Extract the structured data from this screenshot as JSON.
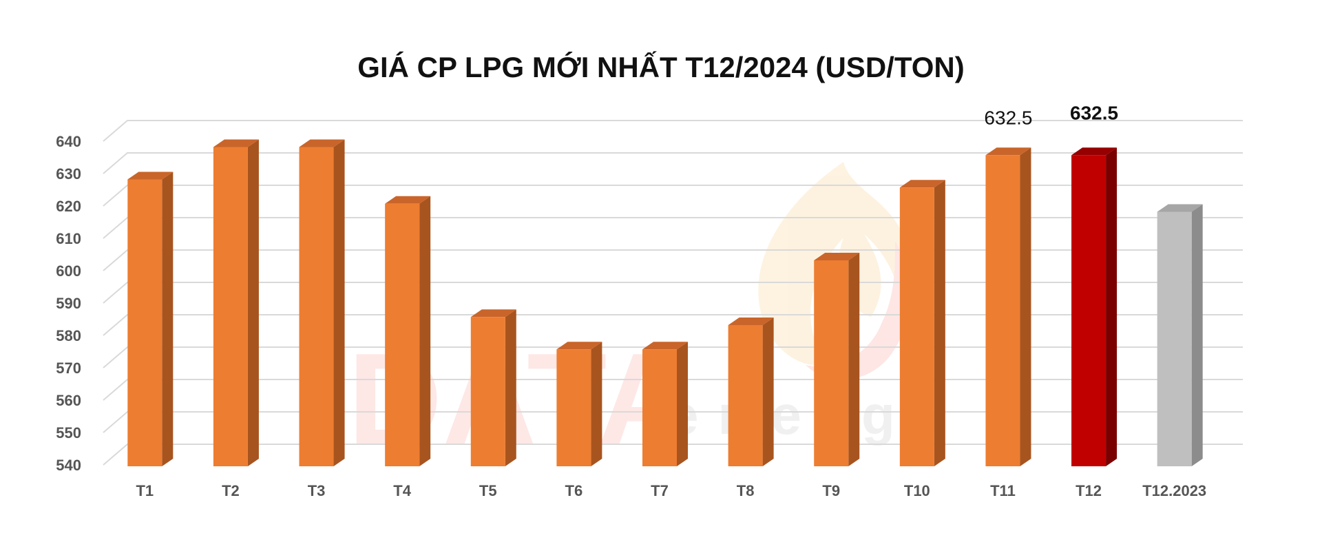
{
  "watermark": {
    "brand_main": "DATA",
    "brand_sub": "energy",
    "flame_icon": "flame-logo-icon"
  },
  "colors": {
    "bar": "#ED7D31",
    "bar_side": "#A8541F",
    "bar_top": "#C9652A",
    "highlight": "#C00000",
    "highlight_side": "#7A0000",
    "highlight_top": "#960000",
    "previous_year": "#BFBFBF",
    "previous_year_side": "#8C8C8C",
    "previous_year_top": "#A6A6A6",
    "grid": "#D9D9D9"
  },
  "chart_data": {
    "type": "bar",
    "title": "GIÁ CP LPG MỚI NHẤT T12/2024 (USD/TON)",
    "xlabel": "",
    "ylabel": "",
    "categories": [
      "T1",
      "T2",
      "T3",
      "T4",
      "T5",
      "T6",
      "T7",
      "T8",
      "T9",
      "T10",
      "T11",
      "T12",
      "T12.2023"
    ],
    "values": [
      625,
      635,
      635,
      617.5,
      582.5,
      572.5,
      572.5,
      580,
      600,
      622.5,
      632.5,
      632.5,
      615
    ],
    "highlight_index": 11,
    "previous_year_index": 12,
    "data_labels": [
      {
        "index": 10,
        "text": "632.5",
        "bold": false
      },
      {
        "index": 11,
        "text": "632.5",
        "bold": true
      }
    ],
    "ylim": [
      540,
      640
    ],
    "yticks": [
      540,
      550,
      560,
      570,
      580,
      590,
      600,
      610,
      620,
      630,
      640
    ],
    "ytick_labels": [
      "540",
      "550",
      "560",
      "570",
      "580",
      "590",
      "600",
      "610",
      "620",
      "630",
      "640"
    ],
    "grid": true,
    "legend": "none",
    "style": "3d-column"
  }
}
